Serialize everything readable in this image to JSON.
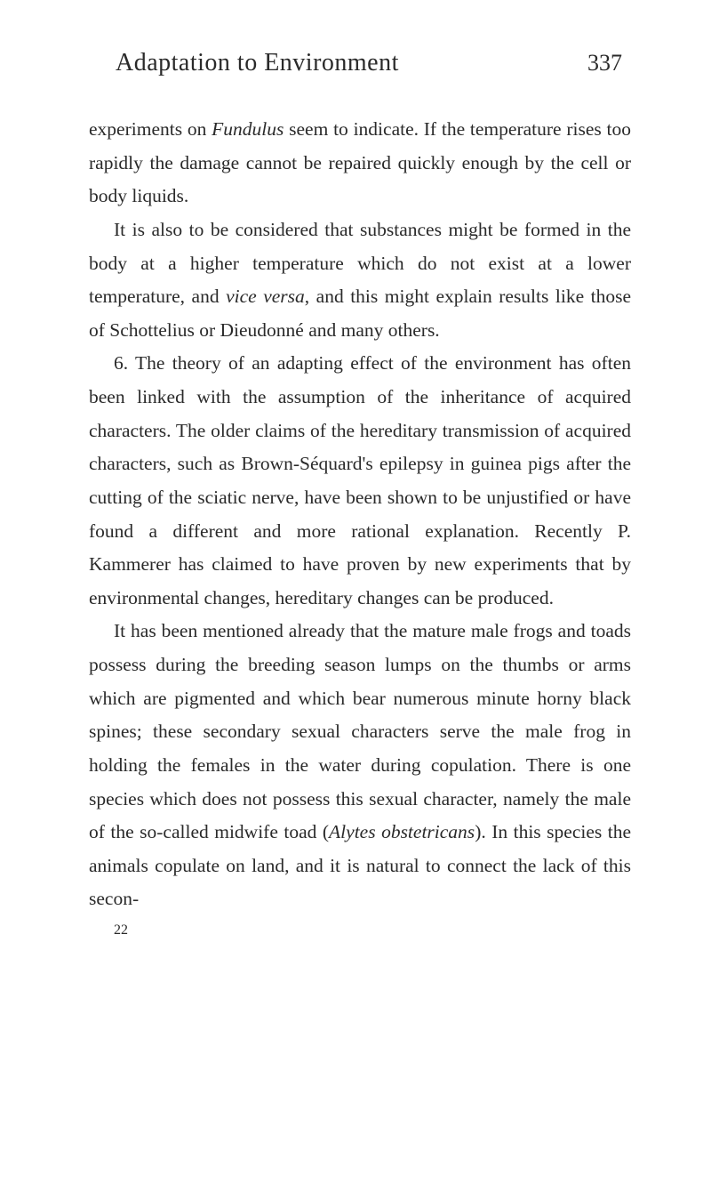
{
  "header": {
    "chapter_title": "Adaptation to Environment",
    "page_number": "337"
  },
  "paragraphs": {
    "p1_part1": "experiments on ",
    "p1_italic1": "Fundulus",
    "p1_part2": " seem to indicate. If the temperature rises too rapidly the damage cannot be repaired quickly enough by the cell or body liquids.",
    "p2_part1": "It is also to be considered that substances might be formed in the body at a higher temperature which do not exist at a lower temperature, and ",
    "p2_italic1": "vice versa",
    "p2_part2": ", and this might explain results like those of Schottelius or Dieudonné and many others.",
    "p3": "6. The theory of an adapting effect of the environ­ment has often been linked with the assumption of the inheritance of acquired characters. The older claims of the hereditary transmission of acquired characters, such as Brown-Séquard's epilepsy in guinea pigs after the cutting of the sciatic nerve, have been shown to be unjustified or have found a different and more rational explanation. Recently P. Kammerer has claimed to have proven by new experiments that by environmental changes, hereditary changes can be produced.",
    "p4_part1": "It has been mentioned already that the mature male frogs and toads possess during the breeding season lumps on the thumbs or arms which are pigmented and which bear numerous minute horny black spines; these secon­dary sexual characters serve the male frog in holding the females in the water during copulation. There is one species which does not possess this sexual character, namely the male of the so-called midwife toad (",
    "p4_italic1": "Alytes obstetricans",
    "p4_part2": "). In this species the animals copulate on land, and it is natural to connect the lack of this secon-"
  },
  "footer": {
    "signature_number": "22"
  }
}
